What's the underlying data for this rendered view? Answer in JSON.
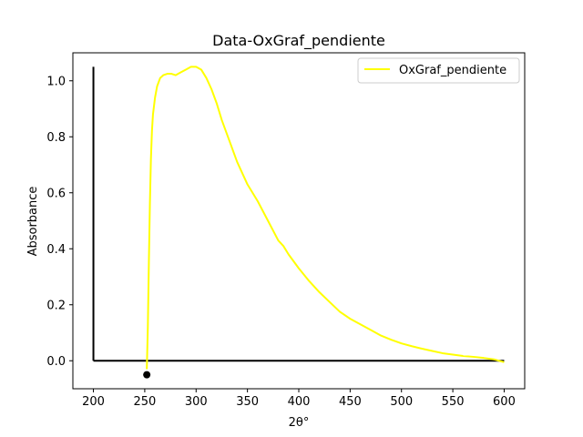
{
  "chart_data": {
    "type": "line",
    "title": "Data-OxGraf_pendiente",
    "xlabel": "2θ°",
    "ylabel": "Absorbance",
    "xlim": [
      180,
      620
    ],
    "ylim": [
      -0.1,
      1.1
    ],
    "xticks": [
      "200",
      "250",
      "300",
      "350",
      "400",
      "450",
      "500",
      "550",
      "600"
    ],
    "yticks": [
      "0.0",
      "0.2",
      "0.4",
      "0.6",
      "0.8",
      "1.0"
    ],
    "xtick_values": [
      200,
      250,
      300,
      350,
      400,
      450,
      500,
      550,
      600
    ],
    "ytick_values": [
      0.0,
      0.2,
      0.4,
      0.6,
      0.8,
      1.0
    ],
    "grid": false,
    "legend_position": "top-right",
    "series": [
      {
        "name": "OxGraf_pendiente",
        "color": "#ffff00",
        "x": [
          252,
          253,
          254,
          255,
          256,
          257,
          258,
          260,
          262,
          265,
          268,
          272,
          276,
          280,
          285,
          290,
          295,
          300,
          305,
          310,
          315,
          320,
          325,
          330,
          335,
          340,
          350,
          360,
          370,
          380,
          385,
          390,
          400,
          410,
          420,
          430,
          440,
          450,
          460,
          470,
          480,
          490,
          500,
          510,
          520,
          530,
          540,
          550,
          560,
          570,
          580,
          590,
          595,
          600
        ],
        "y": [
          -0.03,
          0.12,
          0.35,
          0.56,
          0.72,
          0.82,
          0.88,
          0.94,
          0.98,
          1.01,
          1.02,
          1.025,
          1.025,
          1.02,
          1.03,
          1.04,
          1.05,
          1.05,
          1.04,
          1.01,
          0.97,
          0.92,
          0.86,
          0.81,
          0.76,
          0.71,
          0.63,
          0.57,
          0.5,
          0.43,
          0.41,
          0.38,
          0.33,
          0.285,
          0.245,
          0.21,
          0.175,
          0.15,
          0.13,
          0.11,
          0.09,
          0.075,
          0.062,
          0.052,
          0.043,
          0.035,
          0.027,
          0.022,
          0.017,
          0.014,
          0.01,
          0.005,
          0.0,
          -0.005
        ]
      }
    ],
    "overlay_lines": [
      {
        "color": "#000000",
        "x": [
          200,
          200
        ],
        "y": [
          1.05,
          0.0
        ]
      },
      {
        "color": "#000000",
        "x": [
          200,
          600
        ],
        "y": [
          0.0,
          0.0
        ]
      }
    ],
    "markers": [
      {
        "color": "#000000",
        "x": 252,
        "y": -0.05
      }
    ]
  }
}
